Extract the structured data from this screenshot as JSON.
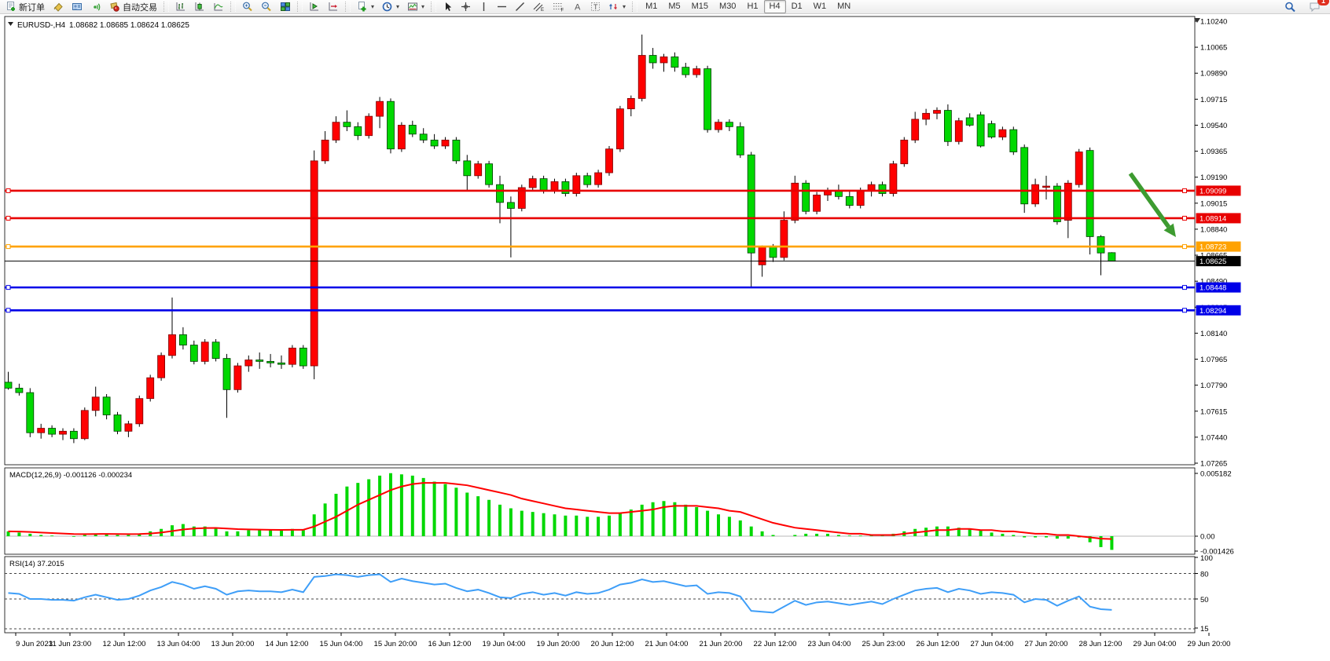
{
  "toolbar": {
    "new_order_label": "新订单",
    "autotrade_label": "自动交易",
    "timeframes": [
      {
        "label": "M1",
        "active": false
      },
      {
        "label": "M5",
        "active": false
      },
      {
        "label": "M15",
        "active": false
      },
      {
        "label": "M30",
        "active": false
      },
      {
        "label": "H1",
        "active": false
      },
      {
        "label": "H4",
        "active": true
      },
      {
        "label": "D1",
        "active": false
      },
      {
        "label": "W1",
        "active": false
      },
      {
        "label": "MN",
        "active": false
      }
    ],
    "chat_badge": "1",
    "icons": [
      "new-order-icon",
      "paint-bucket-icon",
      "profiles-icon",
      "signal-icon",
      "autotrade-icon",
      "bar-chart-icon",
      "candlestick-chart-icon",
      "line-chart-icon",
      "zoom-in-icon",
      "zoom-out-icon",
      "tile-windows-icon",
      "auto-scroll-icon",
      "chart-shift-icon",
      "indicators-icon",
      "period-clock-icon",
      "template-icon",
      "cursor-icon",
      "crosshair-icon",
      "vertical-line-icon",
      "horizontal-line-icon",
      "trendline-icon",
      "equidistant-channel-icon",
      "fibonacci-icon",
      "text-icon",
      "text-label-icon",
      "arrow-shapes-icon",
      "search-icon",
      "chat-icon"
    ]
  },
  "chart_header": {
    "symbol": "EURUSD-,H4",
    "ohlc": "1.08682 1.08685 1.08624 1.08625"
  },
  "chart_data": {
    "type": "candlestick",
    "symbol": "EURUSD",
    "timeframe": "H4",
    "quote": {
      "open": "1.08682",
      "high": "1.08685",
      "low": "1.08624",
      "close": "1.08625"
    },
    "colors": {
      "up": "#ff0000",
      "down": "#00d800",
      "wick": "#000000",
      "macd_hist": "#00d800",
      "macd_signal": "#ff0000",
      "rsi": "#3e9ef8",
      "arrow": "#3d9b30",
      "line_red": "#e80000",
      "line_orange": "#ffa200",
      "line_blue": "#0000e8",
      "current": "#000000"
    },
    "y_axis_ticks": [
      "1.10240",
      "1.10065",
      "1.09890",
      "1.09715",
      "1.09540",
      "1.09365",
      "1.09190",
      "1.09015",
      "1.08840",
      "1.08665",
      "1.08490",
      "1.08315",
      "1.08140",
      "1.07965",
      "1.07790",
      "1.07615",
      "1.07440",
      "1.07265"
    ],
    "x_axis_labels": [
      "9 Jun 2023",
      "11 Jun 23:00",
      "12 Jun 12:00",
      "13 Jun 04:00",
      "13 Jun 20:00",
      "14 Jun 12:00",
      "15 Jun 04:00",
      "15 Jun 20:00",
      "16 Jun 12:00",
      "19 Jun 04:00",
      "19 Jun 20:00",
      "20 Jun 12:00",
      "21 Jun 04:00",
      "21 Jun 20:00",
      "22 Jun 12:00",
      "23 Jun 04:00",
      "25 Jun 23:00",
      "26 Jun 12:00",
      "27 Jun 04:00",
      "27 Jun 20:00",
      "28 Jun 12:00",
      "29 Jun 04:00",
      "29 Jun 20:00"
    ],
    "price_lines": [
      {
        "price": "1.09099",
        "value": 1.09099,
        "color": "#e80000"
      },
      {
        "price": "1.08914",
        "value": 1.08914,
        "color": "#e80000"
      },
      {
        "price": "1.08723",
        "value": 1.08723,
        "color": "#ffa200"
      },
      {
        "price": "1.08448",
        "value": 1.08448,
        "color": "#0000e8"
      },
      {
        "price": "1.08294",
        "value": 1.08294,
        "color": "#0000e8"
      }
    ],
    "current_price_line": {
      "price": "1.08625",
      "value": 1.08625,
      "color": "#000000"
    },
    "candles": [
      [
        1.0781,
        1.0788,
        1.0776,
        1.0777
      ],
      [
        1.0777,
        1.078,
        1.0772,
        1.0774
      ],
      [
        1.0774,
        1.0777,
        1.0744,
        1.0747
      ],
      [
        1.0747,
        1.0753,
        1.0743,
        1.075
      ],
      [
        1.075,
        1.0752,
        1.0744,
        1.0746
      ],
      [
        1.0746,
        1.075,
        1.0742,
        1.0748
      ],
      [
        1.0748,
        1.075,
        1.074,
        1.0743
      ],
      [
        1.0743,
        1.0764,
        1.0742,
        1.0762
      ],
      [
        1.0762,
        1.0778,
        1.0758,
        1.0771
      ],
      [
        1.0771,
        1.0773,
        1.0756,
        1.0759
      ],
      [
        1.0759,
        1.0761,
        1.0746,
        1.0748
      ],
      [
        1.0748,
        1.0755,
        1.0744,
        1.0753
      ],
      [
        1.0753,
        1.0772,
        1.0751,
        1.077
      ],
      [
        1.077,
        1.0786,
        1.0768,
        1.0784
      ],
      [
        1.0784,
        1.0801,
        1.0782,
        1.0799
      ],
      [
        1.0799,
        1.0838,
        1.0797,
        1.0813
      ],
      [
        1.0813,
        1.0818,
        1.0803,
        1.0806
      ],
      [
        1.0806,
        1.0809,
        1.0793,
        1.0795
      ],
      [
        1.0795,
        1.081,
        1.0793,
        1.0808
      ],
      [
        1.0808,
        1.081,
        1.0795,
        1.0797
      ],
      [
        1.0797,
        1.08,
        1.0757,
        1.0776
      ],
      [
        1.0776,
        1.0794,
        1.0774,
        1.0792
      ],
      [
        1.0792,
        1.0799,
        1.0788,
        1.0796
      ],
      [
        1.0796,
        1.0801,
        1.079,
        1.0795
      ],
      [
        1.0795,
        1.08,
        1.0791,
        1.0794
      ],
      [
        1.0794,
        1.0799,
        1.079,
        1.0793
      ],
      [
        1.0793,
        1.0806,
        1.0791,
        1.0804
      ],
      [
        1.0804,
        1.0806,
        1.079,
        1.0792
      ],
      [
        1.0792,
        1.0937,
        1.0783,
        1.093
      ],
      [
        1.093,
        1.095,
        1.0928,
        1.0944
      ],
      [
        1.0944,
        1.096,
        1.0942,
        1.0956
      ],
      [
        1.0956,
        1.0964,
        1.095,
        1.0953
      ],
      [
        1.0953,
        1.0956,
        1.0944,
        1.0947
      ],
      [
        1.0947,
        1.0962,
        1.0945,
        1.096
      ],
      [
        1.096,
        1.0973,
        1.0952,
        1.097
      ],
      [
        1.097,
        1.0972,
        1.0935,
        1.0938
      ],
      [
        1.0938,
        1.0956,
        1.0936,
        1.0954
      ],
      [
        1.0954,
        1.0957,
        1.0946,
        1.0948
      ],
      [
        1.0948,
        1.0952,
        1.0942,
        1.0944
      ],
      [
        1.0944,
        1.0948,
        1.0938,
        1.094
      ],
      [
        1.094,
        1.0946,
        1.0938,
        1.0944
      ],
      [
        1.0944,
        1.0946,
        1.0928,
        1.093
      ],
      [
        1.093,
        1.0934,
        1.091,
        1.092
      ],
      [
        1.092,
        1.093,
        1.0918,
        1.0928
      ],
      [
        1.0928,
        1.093,
        1.0912,
        1.0914
      ],
      [
        1.0914,
        1.092,
        1.0888,
        1.0902
      ],
      [
        1.0902,
        1.0906,
        1.0865,
        1.0898
      ],
      [
        1.0898,
        1.0914,
        1.0896,
        1.0912
      ],
      [
        1.0912,
        1.092,
        1.091,
        1.0918
      ],
      [
        1.0918,
        1.092,
        1.0908,
        1.091
      ],
      [
        1.091,
        1.0918,
        1.0908,
        1.0916
      ],
      [
        1.0916,
        1.0918,
        1.0906,
        1.0908
      ],
      [
        1.0908,
        1.0922,
        1.0906,
        1.092
      ],
      [
        1.092,
        1.0922,
        1.0912,
        1.0914
      ],
      [
        1.0914,
        1.0924,
        1.0912,
        1.0922
      ],
      [
        1.0922,
        1.094,
        1.092,
        1.0938
      ],
      [
        1.0938,
        1.0967,
        1.0936,
        1.0965
      ],
      [
        1.0965,
        1.0974,
        1.096,
        1.0972
      ],
      [
        1.0972,
        1.1015,
        1.097,
        1.1001
      ],
      [
        1.1001,
        1.1006,
        1.0992,
        1.0996
      ],
      [
        1.0996,
        1.1002,
        1.099,
        1.1
      ],
      [
        1.1,
        1.1003,
        1.099,
        1.0993
      ],
      [
        1.0993,
        1.0996,
        1.0986,
        1.0988
      ],
      [
        1.0988,
        1.0994,
        1.0986,
        1.0992
      ],
      [
        1.0992,
        1.0994,
        1.0949,
        1.0951
      ],
      [
        1.0951,
        1.0958,
        1.0949,
        1.0956
      ],
      [
        1.0956,
        1.0958,
        1.095,
        1.0953
      ],
      [
        1.0953,
        1.0956,
        1.0932,
        1.0934
      ],
      [
        1.0934,
        1.0936,
        1.0845,
        1.0868
      ],
      [
        1.086,
        1.0873,
        1.0852,
        1.0872
      ],
      [
        1.0872,
        1.0874,
        1.0862,
        1.0865
      ],
      [
        1.0865,
        1.0896,
        1.0863,
        1.089
      ],
      [
        1.089,
        1.092,
        1.0888,
        1.0915
      ],
      [
        1.0915,
        1.0917,
        1.0894,
        1.0896
      ],
      [
        1.0896,
        1.0909,
        1.0894,
        1.0907
      ],
      [
        1.0907,
        1.0912,
        1.0903,
        1.091
      ],
      [
        1.091,
        1.0914,
        1.0904,
        1.0906
      ],
      [
        1.0906,
        1.091,
        1.0898,
        1.09
      ],
      [
        1.09,
        1.0912,
        1.0898,
        1.091
      ],
      [
        1.091,
        1.0916,
        1.0906,
        1.0914
      ],
      [
        1.0914,
        1.0916,
        1.0906,
        1.0908
      ],
      [
        1.0908,
        1.093,
        1.0906,
        1.0928
      ],
      [
        1.0928,
        1.0946,
        1.0926,
        1.0944
      ],
      [
        1.0944,
        1.0963,
        1.0942,
        1.0958
      ],
      [
        1.0958,
        1.0965,
        1.0954,
        1.0962
      ],
      [
        1.0962,
        1.0966,
        1.0958,
        1.0964
      ],
      [
        1.0964,
        1.0968,
        1.094,
        1.0943
      ],
      [
        1.0943,
        1.0959,
        1.0941,
        1.0957
      ],
      [
        1.0959,
        1.0962,
        1.0953,
        1.0954
      ],
      [
        1.0961,
        1.0963,
        1.0939,
        1.094
      ],
      [
        1.0955,
        1.0957,
        1.0945,
        1.0946
      ],
      [
        1.0946,
        1.0953,
        1.0944,
        1.0951
      ],
      [
        1.0951,
        1.0953,
        1.0934,
        1.0936
      ],
      [
        1.0939,
        1.0941,
        1.0895,
        1.0901
      ],
      [
        1.0901,
        1.0918,
        1.0899,
        1.0914
      ],
      [
        1.0913,
        1.092,
        1.0904,
        1.0913
      ],
      [
        1.0913,
        1.0915,
        1.0887,
        1.0889
      ],
      [
        1.089,
        1.0917,
        1.0878,
        1.0915
      ],
      [
        1.0914,
        1.0938,
        1.0912,
        1.0936
      ],
      [
        1.0937,
        1.0939,
        1.0867,
        1.0879
      ],
      [
        1.0879,
        1.088,
        1.0853,
        1.0868
      ],
      [
        1.08682,
        1.08685,
        1.08624,
        1.08625
      ]
    ],
    "macd": {
      "label": "MACD(12,26,9)",
      "main_value": "-0.001126",
      "signal_value": "-0.000234",
      "axis": [
        "0.005182",
        "0.00",
        "-0.001426"
      ],
      "histogram": [
        0.0004,
        0.0003,
        0.0002,
        0.0001,
        5e-05,
        0,
        -5e-05,
        0.0001,
        0.0002,
        0.0002,
        0.0001,
        0.0001,
        0.0002,
        0.0004,
        0.0006,
        0.0009,
        0.001,
        0.0008,
        0.0008,
        0.0007,
        0.0004,
        0.0004,
        0.0005,
        0.0005,
        0.0005,
        0.0005,
        0.0006,
        0.0005,
        0.0018,
        0.0027,
        0.0035,
        0.0041,
        0.0044,
        0.0047,
        0.005,
        0.0052,
        0.0051,
        0.005,
        0.0048,
        0.0045,
        0.0043,
        0.004,
        0.0036,
        0.0033,
        0.003,
        0.0026,
        0.0023,
        0.0021,
        0.002,
        0.0019,
        0.0018,
        0.0017,
        0.0017,
        0.0016,
        0.0016,
        0.0017,
        0.0019,
        0.0022,
        0.0026,
        0.0028,
        0.0029,
        0.0028,
        0.0026,
        0.0024,
        0.0021,
        0.0018,
        0.0016,
        0.0013,
        0.0008,
        0.0004,
        0.0001,
        0,
        0.0001,
        0.0002,
        0.0002,
        0.0002,
        0.0001,
        5e-05,
        5e-05,
        8e-05,
        0.0001,
        0.0002,
        0.0004,
        0.0006,
        0.0007,
        0.0008,
        0.0008,
        0.0007,
        0.0006,
        0.0005,
        0.0003,
        0.0002,
        0.0001,
        -0.0001,
        -0.0001,
        -0.0001,
        -0.0002,
        -0.0002,
        -0.0001,
        -0.0005,
        -0.0009,
        -0.00113
      ],
      "signal": [
        0.0004,
        0.00038,
        0.00035,
        0.0003,
        0.00026,
        0.00022,
        0.00018,
        0.00017,
        0.00018,
        0.00019,
        0.00018,
        0.00017,
        0.00018,
        0.00022,
        0.0003,
        0.00042,
        0.00055,
        0.00063,
        0.00067,
        0.00068,
        0.00063,
        0.00058,
        0.00056,
        0.00054,
        0.00053,
        0.00052,
        0.00053,
        0.00053,
        0.0008,
        0.0012,
        0.0016,
        0.0021,
        0.0026,
        0.003,
        0.0034,
        0.0038,
        0.0041,
        0.0043,
        0.0044,
        0.0044,
        0.0044,
        0.0043,
        0.0042,
        0.004,
        0.0038,
        0.0036,
        0.0034,
        0.0031,
        0.0029,
        0.0027,
        0.0025,
        0.0023,
        0.0022,
        0.0021,
        0.002,
        0.0019,
        0.0019,
        0.002,
        0.0021,
        0.0022,
        0.0024,
        0.0025,
        0.0025,
        0.0025,
        0.0024,
        0.0023,
        0.0021,
        0.002,
        0.0017,
        0.0014,
        0.0011,
        0.0009,
        0.0007,
        0.0006,
        0.0005,
        0.0004,
        0.0003,
        0.0002,
        0.0002,
        0.0001,
        0.0001,
        0.0001,
        0.0002,
        0.0003,
        0.0004,
        0.0005,
        0.0005,
        0.0006,
        0.0006,
        0.0005,
        0.0005,
        0.0004,
        0.0004,
        0.0003,
        0.0002,
        0.0002,
        0.0001,
        0.0001,
        0,
        -0.0001,
        -0.0002,
        -0.000234
      ]
    },
    "rsi": {
      "label": "RSI(14)",
      "value": "37.2015",
      "levels": [
        "100",
        "80",
        "50",
        "15"
      ],
      "series": [
        57,
        56,
        50,
        50,
        49,
        49,
        48,
        52,
        55,
        52,
        49,
        50,
        54,
        60,
        64,
        70,
        67,
        62,
        65,
        62,
        55,
        59,
        60,
        59,
        59,
        58,
        61,
        58,
        76,
        77,
        79,
        78,
        76,
        78,
        79,
        70,
        74,
        71,
        69,
        67,
        68,
        63,
        59,
        61,
        57,
        52,
        51,
        56,
        58,
        55,
        57,
        54,
        58,
        56,
        57,
        61,
        67,
        69,
        73,
        70,
        71,
        68,
        65,
        66,
        56,
        58,
        57,
        53,
        36,
        35,
        34,
        41,
        48,
        43,
        46,
        47,
        45,
        43,
        45,
        47,
        44,
        50,
        55,
        60,
        62,
        63,
        58,
        62,
        60,
        56,
        58,
        57,
        55,
        46,
        50,
        49,
        42,
        48,
        53,
        41,
        38,
        37.2
      ]
    },
    "annotation_arrow": {
      "color": "#3d9b30",
      "from": {
        "x": 1438,
        "y": 221
      },
      "to": {
        "x": 1496,
        "y": 302
      }
    }
  }
}
